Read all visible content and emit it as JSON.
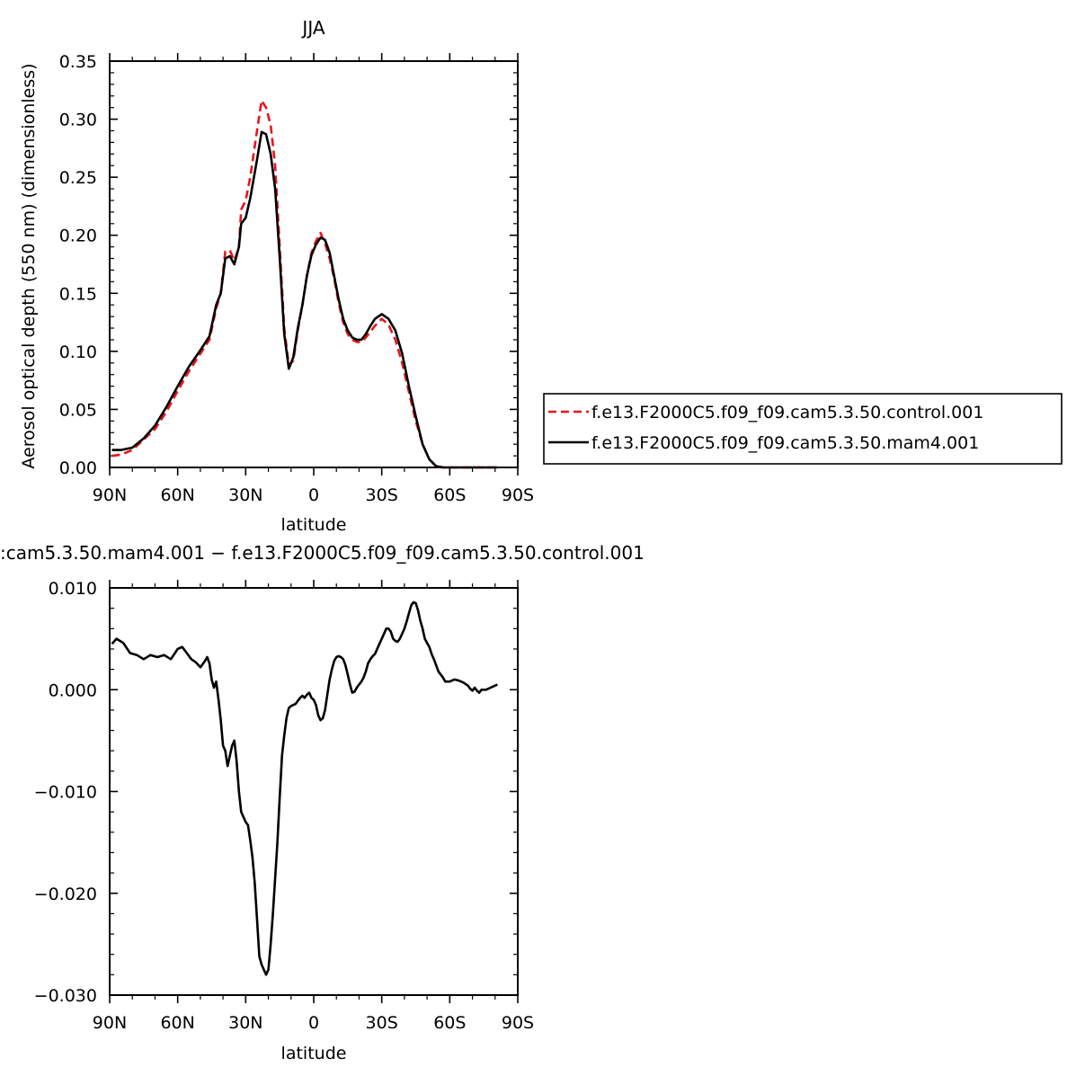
{
  "chart_data": [
    {
      "type": "line",
      "title": "JJA",
      "xlabel": "latitude",
      "ylabel": "Aerosol optical depth (550 nm) (dimensionless)",
      "xlim": [
        90,
        -90
      ],
      "ylim": [
        0,
        0.35
      ],
      "x_ticks": [
        90,
        60,
        30,
        0,
        -30,
        -60,
        -90
      ],
      "x_tick_labels": [
        "90N",
        "60N",
        "30N",
        "0",
        "30S",
        "60S",
        "90S"
      ],
      "y_ticks": [
        0,
        0.05,
        0.1,
        0.15,
        0.2,
        0.25,
        0.3,
        0.35
      ],
      "y_tick_labels": [
        "0.00",
        "0.05",
        "0.10",
        "0.15",
        "0.20",
        "0.25",
        "0.30",
        "0.35"
      ],
      "legend_position": "right",
      "series": [
        {
          "name": "f.e13.F2000C5.f09_f09.cam5.3.50.control.001",
          "color": "#e8141c",
          "dash": "dashed",
          "x": [
            89,
            85,
            80,
            75,
            70,
            65,
            60,
            55,
            50,
            46,
            43,
            41,
            39,
            37,
            35,
            33,
            32,
            30,
            28,
            25,
            23,
            21,
            19,
            17,
            15,
            13,
            11,
            9,
            7,
            5,
            3,
            1,
            -1,
            -3,
            -5,
            -7,
            -9,
            -11,
            -13,
            -15,
            -17,
            -19,
            -21,
            -23,
            -25,
            -27,
            -30,
            -33,
            -36,
            -39,
            -42,
            -45,
            -48,
            -51,
            -54,
            -57,
            -60,
            -63,
            -66,
            -69,
            -72,
            -75,
            -78,
            -81
          ],
          "y": [
            0.01,
            0.011,
            0.015,
            0.024,
            0.033,
            0.048,
            0.066,
            0.083,
            0.098,
            0.11,
            0.137,
            0.15,
            0.186,
            0.187,
            0.178,
            0.19,
            0.222,
            0.23,
            0.25,
            0.29,
            0.316,
            0.31,
            0.295,
            0.26,
            0.19,
            0.12,
            0.088,
            0.092,
            0.118,
            0.14,
            0.165,
            0.185,
            0.195,
            0.202,
            0.193,
            0.18,
            0.163,
            0.142,
            0.125,
            0.115,
            0.11,
            0.108,
            0.108,
            0.112,
            0.117,
            0.122,
            0.128,
            0.123,
            0.11,
            0.09,
            0.065,
            0.04,
            0.02,
            0.007,
            0.001,
            0.0,
            0.0,
            0.0,
            0.0,
            0.0,
            0.0,
            0.0,
            0.0,
            0.0
          ]
        },
        {
          "name": "f.e13.F2000C5.f09_f09.cam5.3.50.mam4.001",
          "color": "#000000",
          "dash": "solid",
          "x": [
            89,
            85,
            80,
            75,
            70,
            65,
            60,
            55,
            50,
            46,
            43,
            41,
            39,
            37,
            35,
            33,
            32,
            30,
            28,
            25,
            23,
            21,
            19,
            17,
            15,
            13,
            11,
            9,
            7,
            5,
            3,
            1,
            -1,
            -3,
            -5,
            -7,
            -9,
            -11,
            -13,
            -15,
            -17,
            -19,
            -21,
            -23,
            -25,
            -27,
            -30,
            -33,
            -36,
            -39,
            -42,
            -45,
            -48,
            -51,
            -54,
            -57,
            -60,
            -63,
            -66,
            -69,
            -72,
            -75,
            -78,
            -81
          ],
          "y": [
            0.015,
            0.015,
            0.017,
            0.025,
            0.036,
            0.052,
            0.07,
            0.087,
            0.101,
            0.113,
            0.14,
            0.15,
            0.18,
            0.182,
            0.175,
            0.19,
            0.21,
            0.215,
            0.232,
            0.265,
            0.289,
            0.287,
            0.27,
            0.24,
            0.18,
            0.115,
            0.085,
            0.095,
            0.12,
            0.14,
            0.165,
            0.183,
            0.192,
            0.198,
            0.196,
            0.185,
            0.165,
            0.145,
            0.128,
            0.118,
            0.112,
            0.11,
            0.11,
            0.115,
            0.122,
            0.128,
            0.132,
            0.128,
            0.118,
            0.098,
            0.07,
            0.044,
            0.02,
            0.007,
            0.001,
            0.0,
            0.0,
            0.0,
            0.0,
            0.0,
            0.0,
            0.0,
            0.0,
            0.0
          ]
        }
      ]
    },
    {
      "type": "line",
      "title": ":cam5.3.50.mam4.001  −  f.e13.F2000C5.f09_f09.cam5.3.50.control.001",
      "xlabel": "latitude",
      "ylabel": "",
      "xlim": [
        90,
        -90
      ],
      "ylim": [
        -0.03,
        0.01
      ],
      "x_ticks": [
        90,
        60,
        30,
        0,
        -30,
        -60,
        -90
      ],
      "x_tick_labels": [
        "90N",
        "60N",
        "30N",
        "0",
        "30S",
        "60S",
        "90S"
      ],
      "y_ticks": [
        0.01,
        0.0,
        -0.01,
        -0.02,
        -0.03
      ],
      "y_tick_labels": [
        "0.010",
        "0.000",
        "−0.010",
        "−0.020",
        "−0.030"
      ],
      "series": [
        {
          "color": "#000000",
          "dash": "solid",
          "x": [
            89,
            87,
            84,
            81,
            78,
            75,
            72,
            69,
            66,
            63,
            60,
            58,
            56,
            54,
            52,
            50,
            48,
            47,
            46,
            45,
            44,
            43,
            42,
            41,
            40,
            39,
            38,
            37,
            36,
            35,
            34,
            33,
            32,
            31,
            30,
            29,
            28,
            27,
            26,
            25,
            24,
            23,
            22,
            21,
            20,
            19,
            18,
            17,
            16,
            15,
            14,
            13,
            12,
            11,
            10,
            9,
            8,
            7,
            6,
            5,
            4,
            3,
            2,
            1,
            0,
            -1,
            -2,
            -3,
            -4,
            -5,
            -6,
            -7,
            -8,
            -9,
            -10,
            -11,
            -12,
            -13,
            -14,
            -15,
            -16,
            -17,
            -18,
            -19,
            -20,
            -21,
            -22,
            -23,
            -24,
            -25,
            -26,
            -27,
            -28,
            -29,
            -30,
            -31,
            -32,
            -33,
            -34,
            -35,
            -36,
            -37,
            -38,
            -39,
            -40,
            -41,
            -42,
            -43,
            -44,
            -45,
            -46,
            -47,
            -48,
            -49,
            -50,
            -51,
            -52,
            -53,
            -54,
            -55,
            -56,
            -57,
            -58,
            -60,
            -62,
            -64,
            -66,
            -68,
            -69,
            -70,
            -71,
            -72,
            -73,
            -74,
            -76,
            -78,
            -80,
            -81
          ],
          "y": [
            0.0045,
            0.005,
            0.0046,
            0.0036,
            0.0034,
            0.003,
            0.0034,
            0.0032,
            0.0034,
            0.003,
            0.004,
            0.0042,
            0.0036,
            0.003,
            0.0027,
            0.0022,
            0.0028,
            0.0032,
            0.0026,
            0.001,
            0.0002,
            0.0008,
            -0.001,
            -0.003,
            -0.0055,
            -0.006,
            -0.0075,
            -0.0065,
            -0.0055,
            -0.005,
            -0.007,
            -0.01,
            -0.012,
            -0.0125,
            -0.013,
            -0.0133,
            -0.0148,
            -0.0165,
            -0.019,
            -0.0225,
            -0.0262,
            -0.027,
            -0.0275,
            -0.028,
            -0.0275,
            -0.025,
            -0.022,
            -0.0185,
            -0.015,
            -0.0105,
            -0.0065,
            -0.0045,
            -0.0028,
            -0.0018,
            -0.0016,
            -0.0015,
            -0.0014,
            -0.0011,
            -0.0008,
            -0.0006,
            -0.0008,
            -0.0005,
            -0.0003,
            -0.0008,
            -0.001,
            -0.0015,
            -0.0025,
            -0.003,
            -0.0028,
            -0.002,
            -0.0005,
            0.001,
            0.002,
            0.0028,
            0.0032,
            0.0033,
            0.0032,
            0.003,
            0.0024,
            0.0015,
            0.0005,
            -0.0003,
            -0.0002,
            0.0002,
            0.0005,
            0.0008,
            0.0012,
            0.0018,
            0.0026,
            0.003,
            0.0033,
            0.0035,
            0.004,
            0.0045,
            0.005,
            0.0055,
            0.006,
            0.006,
            0.0057,
            0.005,
            0.0048,
            0.0047,
            0.005,
            0.0055,
            0.006,
            0.0067,
            0.0075,
            0.0083,
            0.0086,
            0.0085,
            0.0078,
            0.0068,
            0.006,
            0.005,
            0.0046,
            0.0042,
            0.0035,
            0.003,
            0.0024,
            0.0018,
            0.0015,
            0.0012,
            0.0008,
            0.0008,
            0.001,
            0.0009,
            0.0007,
            0.0004,
            0.0001,
            -0.0001,
            0.0002,
            -0.0001,
            -0.0003,
            0.0,
            0.0,
            0.0002,
            0.0004,
            0.0005
          ]
        }
      ]
    }
  ]
}
